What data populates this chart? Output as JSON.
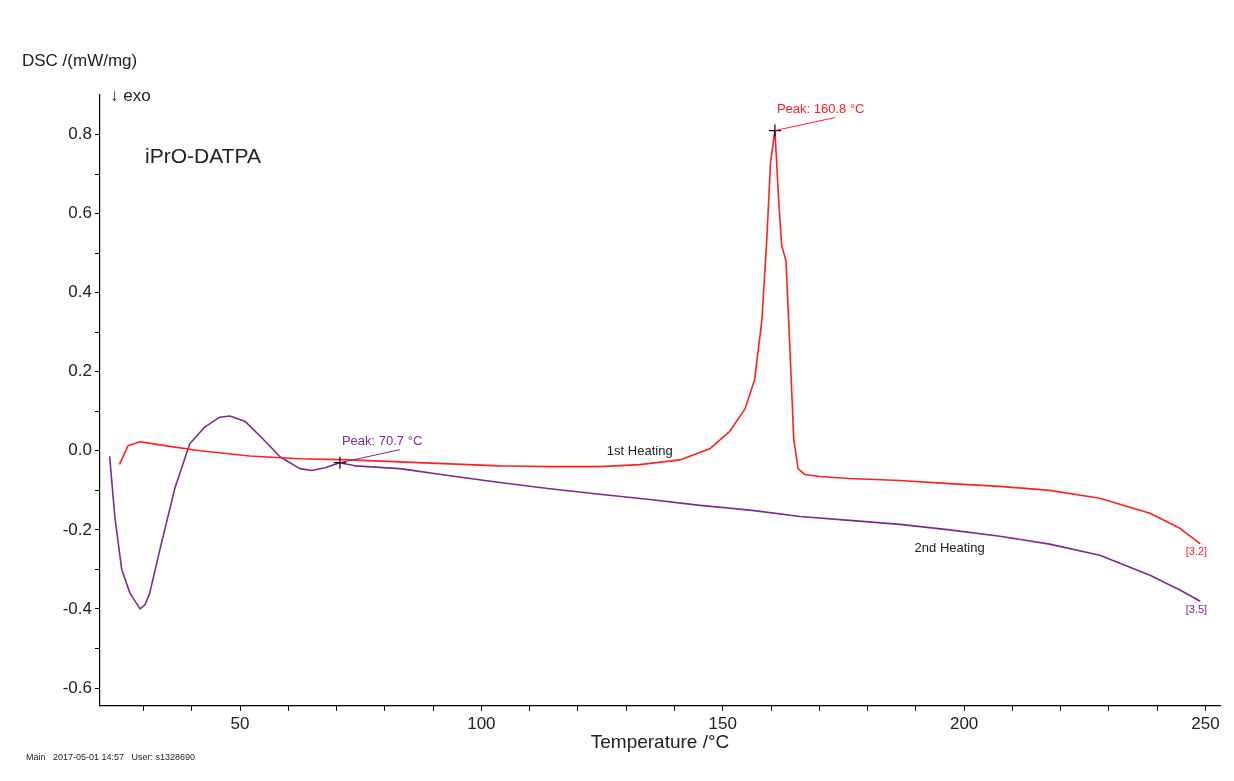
{
  "chart_data": {
    "type": "line",
    "title": "iPrO-DATPA",
    "xlabel": "Temperature /°C",
    "ylabel": "DSC /(mW/mg)",
    "xlim": [
      21,
      253
    ],
    "xticks": [
      {
        "value": 30,
        "label": null
      },
      {
        "value": 40,
        "label": null
      },
      50,
      {
        "value": 60,
        "label": null
      },
      {
        "value": 70,
        "label": null
      },
      {
        "value": 80,
        "label": null
      },
      {
        "value": 90,
        "label": null
      },
      100,
      {
        "value": 110,
        "label": null
      },
      {
        "value": 120,
        "label": null
      },
      {
        "value": 130,
        "label": null
      },
      {
        "value": 140,
        "label": null
      },
      150,
      {
        "value": 160,
        "label": null
      },
      {
        "value": 170,
        "label": null
      },
      {
        "value": 180,
        "label": null
      },
      {
        "value": 190,
        "label": null
      },
      200,
      {
        "value": 210,
        "label": null
      },
      {
        "value": 220,
        "label": null
      },
      {
        "value": 230,
        "label": null
      },
      {
        "value": 240,
        "label": null
      },
      250
    ],
    "ylim": [
      -0.645,
      0.9
    ],
    "yticks": [
      {
        "value": -0.6,
        "label": "-0.6"
      },
      {
        "value": -0.5,
        "label": null
      },
      {
        "value": -0.4,
        "label": "-0.4"
      },
      {
        "value": -0.3,
        "label": null
      },
      {
        "value": -0.2,
        "label": "-0.2"
      },
      {
        "value": -0.1,
        "label": null
      },
      {
        "value": 0,
        "label": "0.0"
      },
      {
        "value": 0.1,
        "label": null
      },
      {
        "value": 0.2,
        "label": "0.2"
      },
      {
        "value": 0.3,
        "label": null
      },
      {
        "value": 0.4,
        "label": "0.4"
      },
      {
        "value": 0.5,
        "label": null
      },
      {
        "value": 0.6,
        "label": "0.6"
      },
      {
        "value": 0.7,
        "label": null
      },
      {
        "value": 0.8,
        "label": "0.8"
      }
    ],
    "grid": false,
    "legend": false,
    "marker": "none",
    "line_style": "solid",
    "series": [
      {
        "name": "1st Heating",
        "color": "#ff2020",
        "x": [
          25.1,
          26.8,
          29.3,
          33.4,
          41.7,
          52.0,
          62.4,
          72.8,
          83.1,
          93.5,
          103.8,
          114.2,
          124.5,
          132.8,
          141.1,
          147.3,
          151.5,
          154.6,
          156.6,
          158.1,
          159.1,
          159.9,
          160.8,
          161.6,
          162.2,
          163.1,
          163.9,
          164.7,
          165.6,
          167.0,
          170.1,
          176.3,
          186.7,
          197.0,
          207.4,
          217.7,
          228.1,
          238.5,
          244.7,
          248.8
        ],
        "values": [
          -0.033,
          0.013,
          0.023,
          0.015,
          0.0,
          -0.013,
          -0.02,
          -0.023,
          -0.028,
          -0.033,
          -0.038,
          -0.04,
          -0.04,
          -0.035,
          -0.023,
          0.005,
          0.05,
          0.106,
          0.18,
          0.33,
          0.53,
          0.73,
          0.81,
          0.63,
          0.52,
          0.48,
          0.26,
          0.03,
          -0.045,
          -0.06,
          -0.065,
          -0.07,
          -0.075,
          -0.083,
          -0.09,
          -0.1,
          -0.12,
          -0.158,
          -0.196,
          -0.234
        ]
      },
      {
        "name": "2nd Heating",
        "color": "#7b2a90",
        "x": [
          23.0,
          24.1,
          25.5,
          27.2,
          29.3,
          30.3,
          31.3,
          33.4,
          36.5,
          39.6,
          42.7,
          45.8,
          47.9,
          51.0,
          54.1,
          58.3,
          62.4,
          64.9,
          67.6,
          70.7,
          73.8,
          83.1,
          93.5,
          103.8,
          114.2,
          124.5,
          134.9,
          145.3,
          155.6,
          166.0,
          176.3,
          186.7,
          197.0,
          207.4,
          217.7,
          228.1,
          238.5,
          244.7,
          248.8
        ],
        "values": [
          -0.015,
          -0.17,
          -0.3,
          -0.36,
          -0.4,
          -0.39,
          -0.36,
          -0.25,
          -0.095,
          0.018,
          0.06,
          0.085,
          0.088,
          0.075,
          0.038,
          -0.015,
          -0.045,
          -0.05,
          -0.043,
          -0.03,
          -0.038,
          -0.045,
          -0.063,
          -0.08,
          -0.096,
          -0.11,
          -0.123,
          -0.138,
          -0.15,
          -0.166,
          -0.176,
          -0.186,
          -0.2,
          -0.216,
          -0.236,
          -0.264,
          -0.315,
          -0.352,
          -0.38
        ]
      }
    ],
    "annotations": [
      "↓ exo",
      {
        "text": "Peak: 160.8 °C",
        "x": 160.8,
        "y": 0.81
      },
      {
        "text": "Peak: 70.7 °C",
        "x": 70.7,
        "y": -0.03
      },
      {
        "text": "[3.2]",
        "x": 248.8,
        "y": -0.234
      },
      {
        "text": "[3.5]",
        "x": 248.8,
        "y": -0.38
      },
      "Main   2017-05-01 14:57   User: s1328690"
    ]
  }
}
